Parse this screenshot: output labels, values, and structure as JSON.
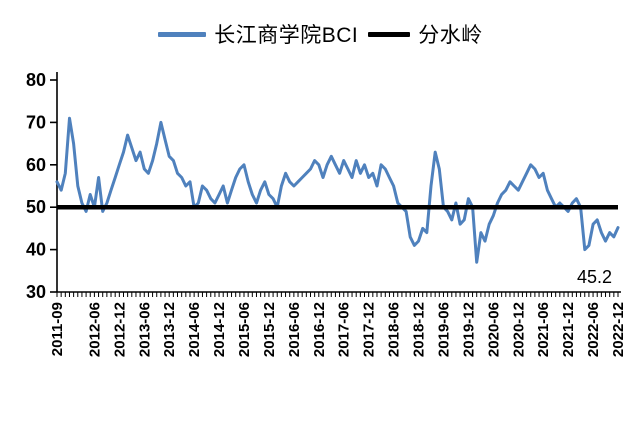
{
  "legend": [
    {
      "label": "长江商学院BCI",
      "color": "#4f81bd"
    },
    {
      "label": "分水岭",
      "color": "#000000"
    }
  ],
  "annotation": {
    "last_value_label": "45.2"
  },
  "chart_data": {
    "type": "line",
    "title": "",
    "xlabel": "",
    "ylabel": "",
    "ylim": [
      30,
      80
    ],
    "y_ticks": [
      30,
      40,
      50,
      60,
      70,
      80
    ],
    "grid": false,
    "legend_position": "top",
    "x_start": "2011-09",
    "x_end": "2022-12",
    "x_frequency": "monthly",
    "x_tick_labels": [
      "2011-09",
      "2012-06",
      "2012-12",
      "2013-06",
      "2013-12",
      "2014-06",
      "2014-12",
      "2015-06",
      "2015-12",
      "2016-06",
      "2016-12",
      "2017-06",
      "2017-12",
      "2018-06",
      "2018-12",
      "2019-06",
      "2019-12",
      "2020-06",
      "2020-12",
      "2021-06",
      "2021-12",
      "2022-06",
      "2022-12"
    ],
    "series": [
      {
        "name": "长江商学院BCI",
        "color": "#4f81bd",
        "values": [
          56,
          54,
          58,
          71,
          65,
          55,
          51,
          49,
          53,
          50,
          57,
          49,
          51,
          54,
          57,
          60,
          63,
          67,
          64,
          61,
          63,
          59,
          58,
          61,
          65,
          70,
          66,
          62,
          61,
          58,
          57,
          55,
          56,
          50,
          51,
          55,
          54,
          52,
          51,
          53,
          55,
          51,
          54,
          57,
          59,
          60,
          56,
          53,
          51,
          54,
          56,
          53,
          52,
          50,
          55,
          58,
          56,
          55,
          56,
          57,
          58,
          59,
          61,
          60,
          57,
          60,
          62,
          60,
          58,
          61,
          59,
          57,
          61,
          58,
          60,
          57,
          58,
          55,
          60,
          59,
          57,
          55,
          51,
          50,
          49,
          43,
          41,
          42,
          45,
          44,
          55,
          63,
          59,
          50,
          49,
          47,
          51,
          46,
          47,
          52,
          50,
          37,
          44,
          42,
          46,
          48,
          51,
          53,
          54,
          56,
          55,
          54,
          56,
          58,
          60,
          59,
          57,
          58,
          54,
          52,
          50,
          51,
          50,
          49,
          51,
          52,
          50,
          40,
          41,
          46,
          47,
          44,
          42,
          44,
          43,
          45.2
        ]
      },
      {
        "name": "分水岭",
        "color": "#000000",
        "constant": 50
      }
    ]
  }
}
